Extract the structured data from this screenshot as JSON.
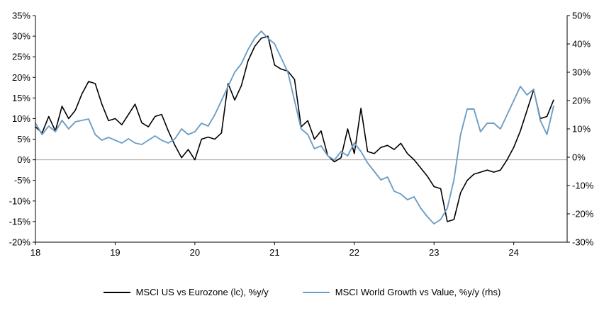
{
  "chart_data": {
    "type": "line",
    "title": "",
    "grid": false,
    "legend_position": "bottom",
    "x_axis": {
      "start": 18,
      "step": 0.0833333,
      "range": [
        18,
        24.67
      ],
      "tick_values": [
        18,
        19,
        20,
        21,
        22,
        23,
        24
      ],
      "tick_labels": [
        "18",
        "19",
        "20",
        "21",
        "22",
        "23",
        "24"
      ]
    },
    "left_axis": {
      "range": [
        -20,
        35
      ],
      "tick_values": [
        35,
        30,
        25,
        20,
        15,
        10,
        5,
        0,
        -5,
        -10,
        -15,
        -20
      ],
      "tick_labels": [
        "35%",
        "30%",
        "25%",
        "20%",
        "15%",
        "10%",
        "5%",
        "0%",
        "-5%",
        "-10%",
        "-15%",
        "-20%"
      ]
    },
    "right_axis": {
      "range": [
        -30,
        50
      ],
      "tick_values": [
        50,
        40,
        30,
        20,
        10,
        0,
        -10,
        -20,
        -30
      ],
      "tick_labels": [
        "50%",
        "40%",
        "30%",
        "20%",
        "10%",
        "0%",
        "-10%",
        "-20%",
        "-30%"
      ]
    },
    "zero_line": true,
    "zero_line_color": "#a6a6a6",
    "series": [
      {
        "name": "MSCI US vs Eurozone (lc), %y/y",
        "axis": "left",
        "color": "#000000",
        "values": [
          8,
          6.5,
          10.5,
          7,
          13,
          10,
          12,
          16,
          19,
          18.5,
          13.5,
          9.5,
          10,
          8.5,
          11,
          13.5,
          9,
          8,
          10.5,
          11,
          7,
          3.5,
          0.5,
          2.5,
          0,
          5,
          5.5,
          5,
          6.5,
          18.5,
          14.5,
          18,
          24,
          27.5,
          29.5,
          30,
          23,
          22,
          21.5,
          19.5,
          8,
          9.5,
          5,
          7,
          1,
          -0.5,
          0.5,
          7.5,
          1.5,
          12.5,
          2,
          1.5,
          3,
          3.5,
          2.5,
          4,
          1.5,
          0,
          -2,
          -4,
          -6.5,
          -7,
          -15,
          -14.5,
          -8,
          -5,
          -3.5,
          -3,
          -2.5,
          -3,
          -2.5,
          0,
          3,
          7,
          12,
          17,
          10,
          10.5,
          14.5
        ]
      },
      {
        "name": "MSCI World Growth vs Value, %y/y (rhs)",
        "axis": "right",
        "color": "#6d9ec6",
        "values": [
          12,
          8,
          11,
          9,
          13,
          10,
          12.5,
          13,
          13.5,
          8,
          6,
          7,
          6,
          5,
          6.5,
          5,
          4.5,
          6,
          7.5,
          6,
          5,
          6.5,
          10,
          8,
          9,
          12,
          11,
          15,
          20,
          25,
          30,
          33,
          38,
          42,
          44.5,
          42,
          40,
          35,
          30,
          20,
          10,
          8,
          3,
          4,
          0.5,
          -1,
          2,
          0.5,
          5,
          2,
          -2,
          -5,
          -8,
          -7,
          -12,
          -13,
          -15,
          -14,
          -18,
          -21,
          -23.5,
          -22,
          -18,
          -8,
          8,
          17,
          17,
          9,
          12,
          12,
          10,
          15,
          20,
          25,
          22,
          24,
          13,
          8,
          18
        ]
      }
    ]
  },
  "legend": {
    "items": [
      {
        "label": "MSCI US vs Eurozone (lc), %y/y",
        "color": "#000000"
      },
      {
        "label": "MSCI World Growth vs Value, %y/y (rhs)",
        "color": "#6d9ec6"
      }
    ]
  }
}
